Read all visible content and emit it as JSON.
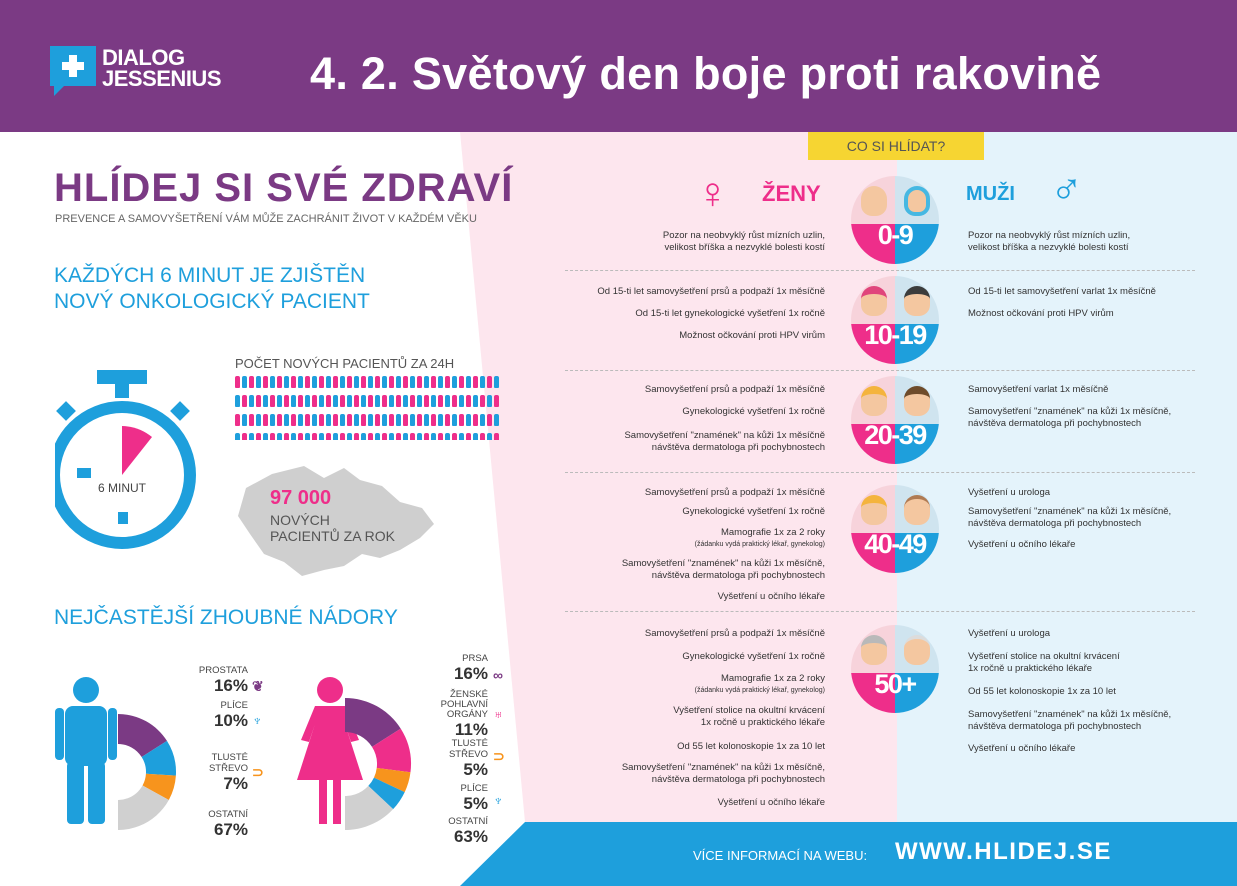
{
  "header": {
    "logo_top": "DIALOG",
    "logo_bottom": "JESSENIUS",
    "title": "4. 2. Světový den boje proti rakovině"
  },
  "left": {
    "headline": "HLÍDEJ SI SVÉ ZDRAVÍ",
    "subheadline": "PREVENCE A SAMOVYŠETŘENÍ VÁM MŮŽE ZACHRÁNIT ŽIVOT V KAŽDÉM VĚKU",
    "stat_line1": "KAŽDÝCH 6 MINUT JE ZJIŠTĚN",
    "stat_line2": "NOVÝ ONKOLOGICKÝ PACIENT",
    "stopwatch_label": "6 MINUT",
    "patients_24h_label": "POČET NOVÝCH PACIENTŮ ZA 24H",
    "yearly_number": "97 000",
    "yearly_line1": "NOVÝCH",
    "yearly_line2": "PACIENTŮ ZA ROK",
    "tumors_heading": "NEJČASTĚJŠÍ ZHOUBNÉ NÁDORY",
    "men": [
      {
        "label": "PROSTATA",
        "value": "16%"
      },
      {
        "label": "PLÍCE",
        "value": "10%"
      },
      {
        "label": "TLUSTÉ STŘEVO",
        "value": "7%"
      },
      {
        "label": "OSTATNÍ",
        "value": "67%"
      }
    ],
    "women": [
      {
        "label": "PRSA",
        "value": "16%"
      },
      {
        "label": "ŽENSKÉ POHLAVNÍ ORGÁNY",
        "value": "11%"
      },
      {
        "label": "TLUSTÉ STŘEVO",
        "value": "5%"
      },
      {
        "label": "PLÍCE",
        "value": "5%"
      },
      {
        "label": "OSTATNÍ",
        "value": "63%"
      }
    ],
    "colors": {
      "purple": "#7b3a84",
      "cyan": "#1e9fdc",
      "pink": "#ee2e8a",
      "orange": "#f7941d",
      "grey": "#d0d0d0"
    }
  },
  "right": {
    "banner": "CO SI HLÍDAT?",
    "women_title": "ŽENY",
    "men_title": "MUŽI",
    "groups": [
      {
        "age": "0-9",
        "women": [
          "Pozor na neobvyklý růst mízních uzlin,\nvelikost bříška a nezvyklé bolesti kostí"
        ],
        "men": [
          "Pozor na neobvyklý růst mízních uzlin,\nvelikost bříška a nezvyklé bolesti kostí"
        ]
      },
      {
        "age": "10-19",
        "women": [
          "Od 15-ti let samovyšetření prsů a podpaží 1x měsíčně",
          "Od 15-ti let gynekologické vyšetření 1x ročně",
          "Možnost očkování proti HPV virům"
        ],
        "men": [
          "Od 15-ti let samovyšetření varlat 1x měsíčně",
          "Možnost očkování proti HPV virům"
        ]
      },
      {
        "age": "20-39",
        "women": [
          "Samovyšetření prsů a podpaží 1x měsíčně",
          "Gynekologické vyšetření 1x ročně",
          "Samovyšetření \"znamének\" na kůži 1x měsíčně\nnávštěva dermatologa při pochybnostech"
        ],
        "men": [
          "Samovyšetření varlat 1x měsíčně",
          "Samovyšetření \"znamének\" na kůži 1x měsíčně,\nnávštěva dermatologa při pochybnostech"
        ]
      },
      {
        "age": "40-49",
        "women": [
          "Samovyšetření prsů a podpaží 1x měsíčně",
          "Gynekologické vyšetření 1x ročně",
          "Mamografie 1x za 2 roky",
          "Samovyšetření \"znamének\" na kůži 1x měsíčně,\nnávštěva dermatologa při pochybnostech",
          "Vyšetření u očního lékaře"
        ],
        "women_note": "(žádanku vydá praktický lékař, gynekolog)",
        "men": [
          "Vyšetření u urologa",
          "Samovyšetření \"znamének\" na kůži 1x měsíčně,\nnávštěva dermatologa při pochybnostech",
          "Vyšetření u očního lékaře"
        ]
      },
      {
        "age": "50+",
        "women": [
          "Samovyšetření prsů a podpaží 1x měsíčně",
          "Gynekologické vyšetření 1x ročně",
          "Mamografie 1x za 2 roky",
          "Vyšetření stolice na okultní krvácení\n1x ročně u praktického lékaře",
          "Od 55 let kolonoskopie 1x za 10 let",
          "Samovyšetření \"znamének\" na kůži 1x měsíčně,\nnávštěva dermatologa při pochybnostech",
          "Vyšetření u očního lékaře"
        ],
        "women_note": "(žádanku vydá praktický lékař, gynekolog)",
        "men": [
          "Vyšetření u urologa",
          "Vyšetření stolice na okultní krvácení\n1x ročně u praktického lékaře",
          "Od 55 let kolonoskopie 1x za 10 let",
          "Samovyšetření \"znamének\" na kůži 1x měsíčně,\nnávštěva dermatologa při pochybnostech",
          "Vyšetření u očního lékaře"
        ]
      }
    ]
  },
  "footer": {
    "label": "VÍCE INFORMACÍ NA WEBU:",
    "url": "WWW.HLIDEJ.SE"
  }
}
